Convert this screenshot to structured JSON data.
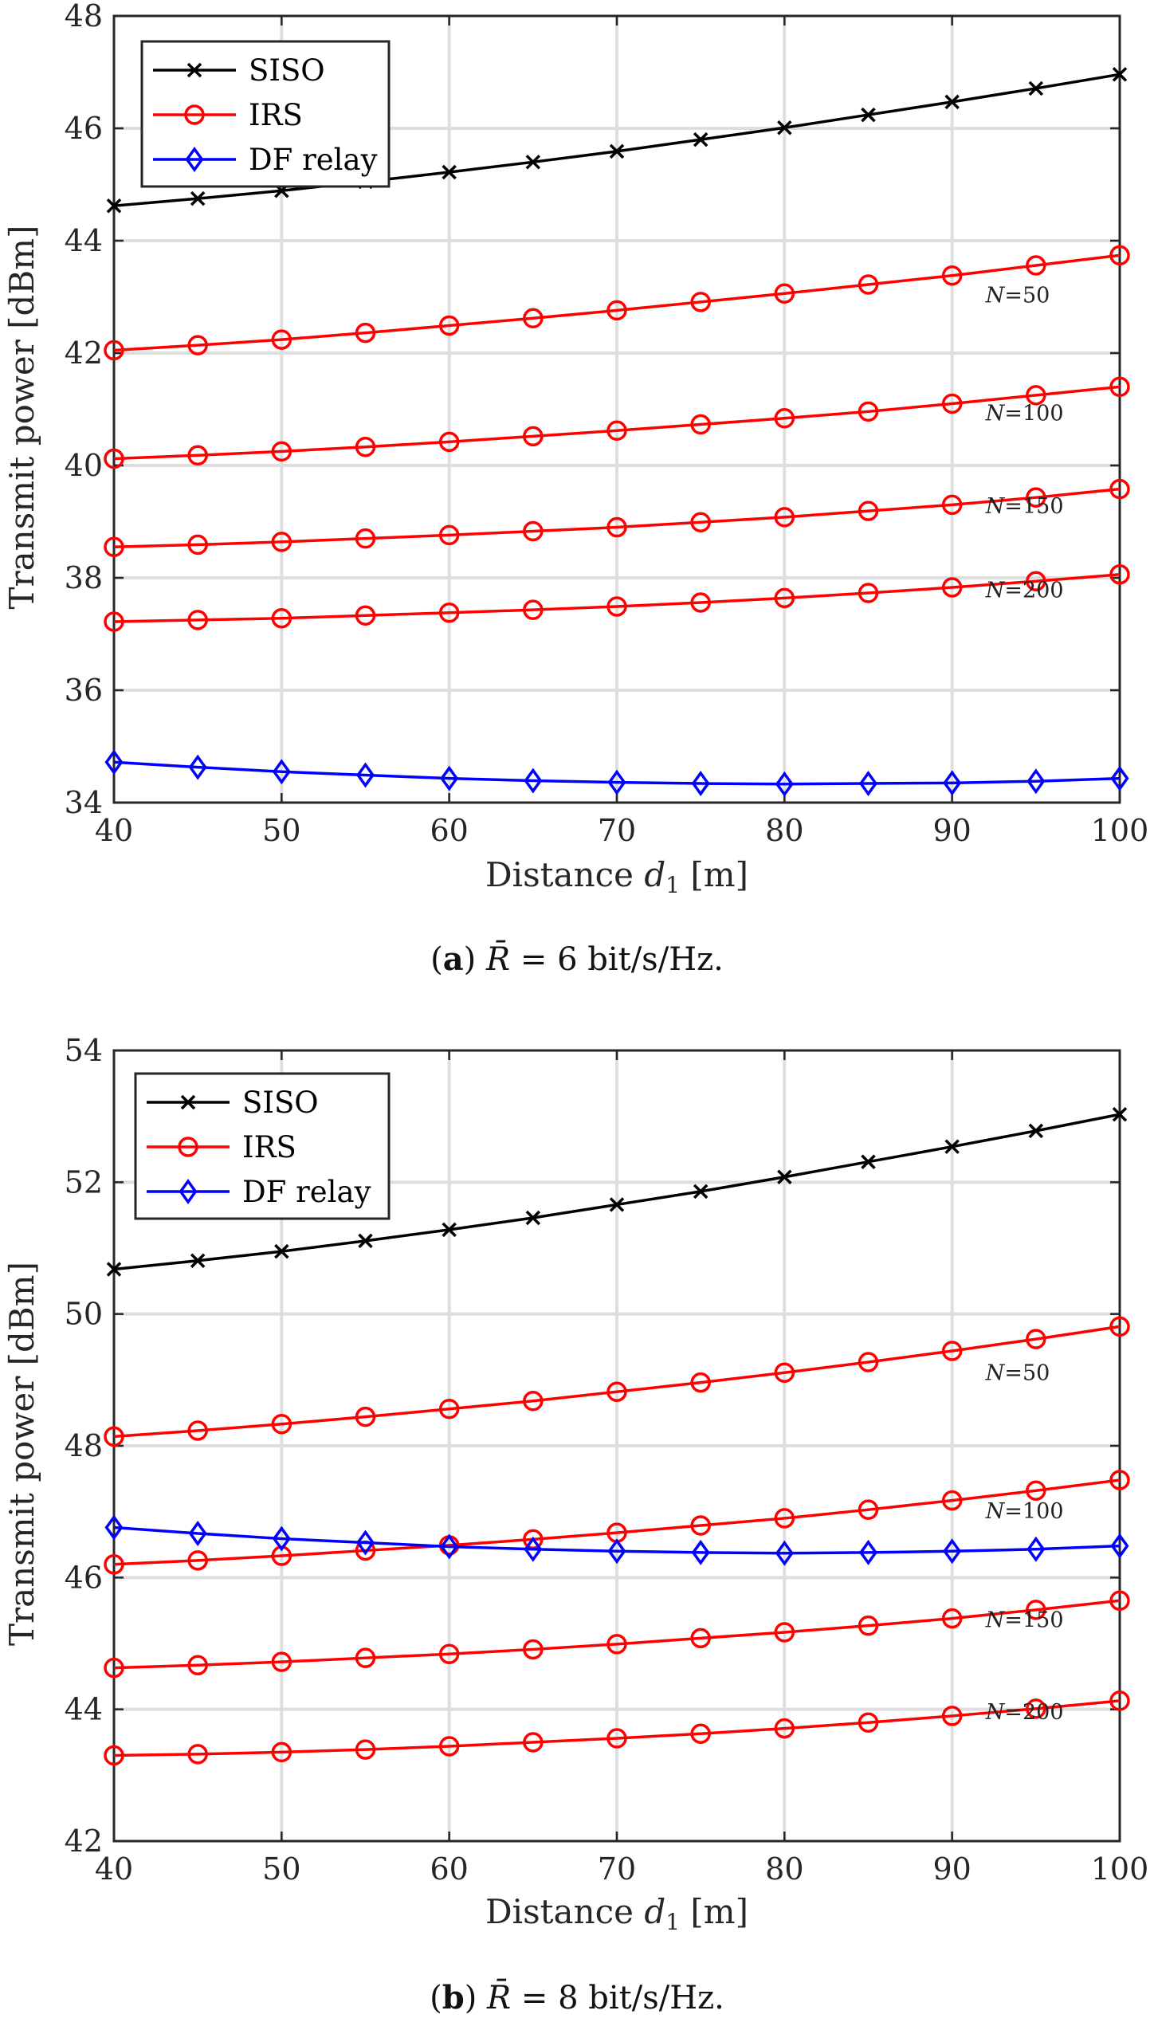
{
  "chart_data": [
    {
      "type": "line",
      "panel": "a",
      "caption_letter": "(a)",
      "caption_text": "R̄ = 6 bit/s/Hz.",
      "xlabel": "Distance d1 [m]",
      "ylabel": "Transmit power [dBm]",
      "xlim": [
        40,
        100
      ],
      "ylim": [
        34,
        48
      ],
      "xticks": [
        40,
        50,
        60,
        70,
        80,
        90,
        100
      ],
      "yticks": [
        34,
        36,
        38,
        40,
        42,
        44,
        46,
        48
      ],
      "grid": true,
      "legend_position": "top-left",
      "legend": [
        "SISO",
        "IRS",
        "DF relay"
      ],
      "x": [
        40,
        45,
        50,
        55,
        60,
        65,
        70,
        75,
        80,
        85,
        90,
        95,
        100
      ],
      "series": [
        {
          "name": "SISO",
          "color": "#000000",
          "marker": "x",
          "values": [
            44.62,
            44.75,
            44.89,
            45.05,
            45.22,
            45.4,
            45.59,
            45.8,
            46.01,
            46.24,
            46.47,
            46.71,
            46.96
          ]
        },
        {
          "name": "IRS N=50",
          "color": "#ff0000",
          "marker": "o",
          "values": [
            42.05,
            42.14,
            42.24,
            42.36,
            42.49,
            42.62,
            42.76,
            42.91,
            43.06,
            43.22,
            43.38,
            43.56,
            43.74
          ]
        },
        {
          "name": "IRS N=100",
          "color": "#ff0000",
          "marker": "o",
          "values": [
            40.12,
            40.18,
            40.25,
            40.33,
            40.42,
            40.52,
            40.62,
            40.73,
            40.84,
            40.96,
            41.1,
            41.25,
            41.4
          ]
        },
        {
          "name": "IRS N=150",
          "color": "#ff0000",
          "marker": "o",
          "values": [
            38.55,
            38.59,
            38.64,
            38.7,
            38.76,
            38.83,
            38.9,
            38.99,
            39.08,
            39.19,
            39.3,
            39.43,
            39.58
          ]
        },
        {
          "name": "IRS N=200",
          "color": "#ff0000",
          "marker": "o",
          "values": [
            37.22,
            37.25,
            37.28,
            37.33,
            37.38,
            37.43,
            37.49,
            37.56,
            37.64,
            37.73,
            37.83,
            37.94,
            38.06
          ]
        },
        {
          "name": "DF relay",
          "color": "#0000ff",
          "marker": "d",
          "values": [
            34.72,
            34.63,
            34.55,
            34.49,
            34.43,
            34.39,
            34.36,
            34.34,
            34.33,
            34.34,
            34.35,
            34.38,
            34.43
          ]
        }
      ],
      "annotations": [
        {
          "text": "N=50",
          "x": 92,
          "y": 42.9
        },
        {
          "text": "N=100",
          "x": 92,
          "y": 40.8
        },
        {
          "text": "N=150",
          "x": 92,
          "y": 39.15
        },
        {
          "text": "N=200",
          "x": 92,
          "y": 37.65
        }
      ]
    },
    {
      "type": "line",
      "panel": "b",
      "caption_letter": "(b)",
      "caption_text": "R̄ = 8 bit/s/Hz.",
      "xlabel": "Distance d1 [m]",
      "ylabel": "Transmit power [dBm]",
      "xlim": [
        40,
        100
      ],
      "ylim": [
        42,
        54
      ],
      "xticks": [
        40,
        50,
        60,
        70,
        80,
        90,
        100
      ],
      "yticks": [
        42,
        44,
        46,
        48,
        50,
        52,
        54
      ],
      "grid": true,
      "legend_position": "top-left",
      "legend": [
        "SISO",
        "IRS",
        "DF relay"
      ],
      "x": [
        40,
        45,
        50,
        55,
        60,
        65,
        70,
        75,
        80,
        85,
        90,
        95,
        100
      ],
      "series": [
        {
          "name": "SISO",
          "color": "#000000",
          "marker": "x",
          "values": [
            50.68,
            50.81,
            50.95,
            51.11,
            51.28,
            51.46,
            51.66,
            51.86,
            52.08,
            52.31,
            52.54,
            52.78,
            53.03
          ]
        },
        {
          "name": "IRS N=50",
          "color": "#ff0000",
          "marker": "o",
          "values": [
            48.14,
            48.23,
            48.33,
            48.44,
            48.56,
            48.68,
            48.82,
            48.96,
            49.11,
            49.27,
            49.44,
            49.62,
            49.81
          ]
        },
        {
          "name": "IRS N=100",
          "color": "#ff0000",
          "marker": "o",
          "values": [
            46.2,
            46.26,
            46.33,
            46.41,
            46.49,
            46.58,
            46.68,
            46.79,
            46.9,
            47.03,
            47.17,
            47.32,
            47.48
          ]
        },
        {
          "name": "IRS N=150",
          "color": "#ff0000",
          "marker": "o",
          "values": [
            44.63,
            44.67,
            44.72,
            44.78,
            44.84,
            44.91,
            44.99,
            45.08,
            45.17,
            45.27,
            45.38,
            45.51,
            45.65
          ]
        },
        {
          "name": "IRS N=200",
          "color": "#ff0000",
          "marker": "o",
          "values": [
            43.3,
            43.32,
            43.35,
            43.39,
            43.44,
            43.5,
            43.56,
            43.63,
            43.71,
            43.8,
            43.9,
            44.01,
            44.13
          ]
        },
        {
          "name": "DF relay",
          "color": "#0000ff",
          "marker": "d",
          "values": [
            46.76,
            46.67,
            46.59,
            46.53,
            46.47,
            46.43,
            46.4,
            46.38,
            46.37,
            46.38,
            46.4,
            46.43,
            46.48
          ]
        }
      ],
      "annotations": [
        {
          "text": "N=50",
          "x": 92,
          "y": 49.0
        },
        {
          "text": "N=100",
          "x": 92,
          "y": 46.9
        },
        {
          "text": "N=150",
          "x": 92,
          "y": 45.25
        },
        {
          "text": "N=200",
          "x": 92,
          "y": 43.85
        }
      ]
    }
  ]
}
